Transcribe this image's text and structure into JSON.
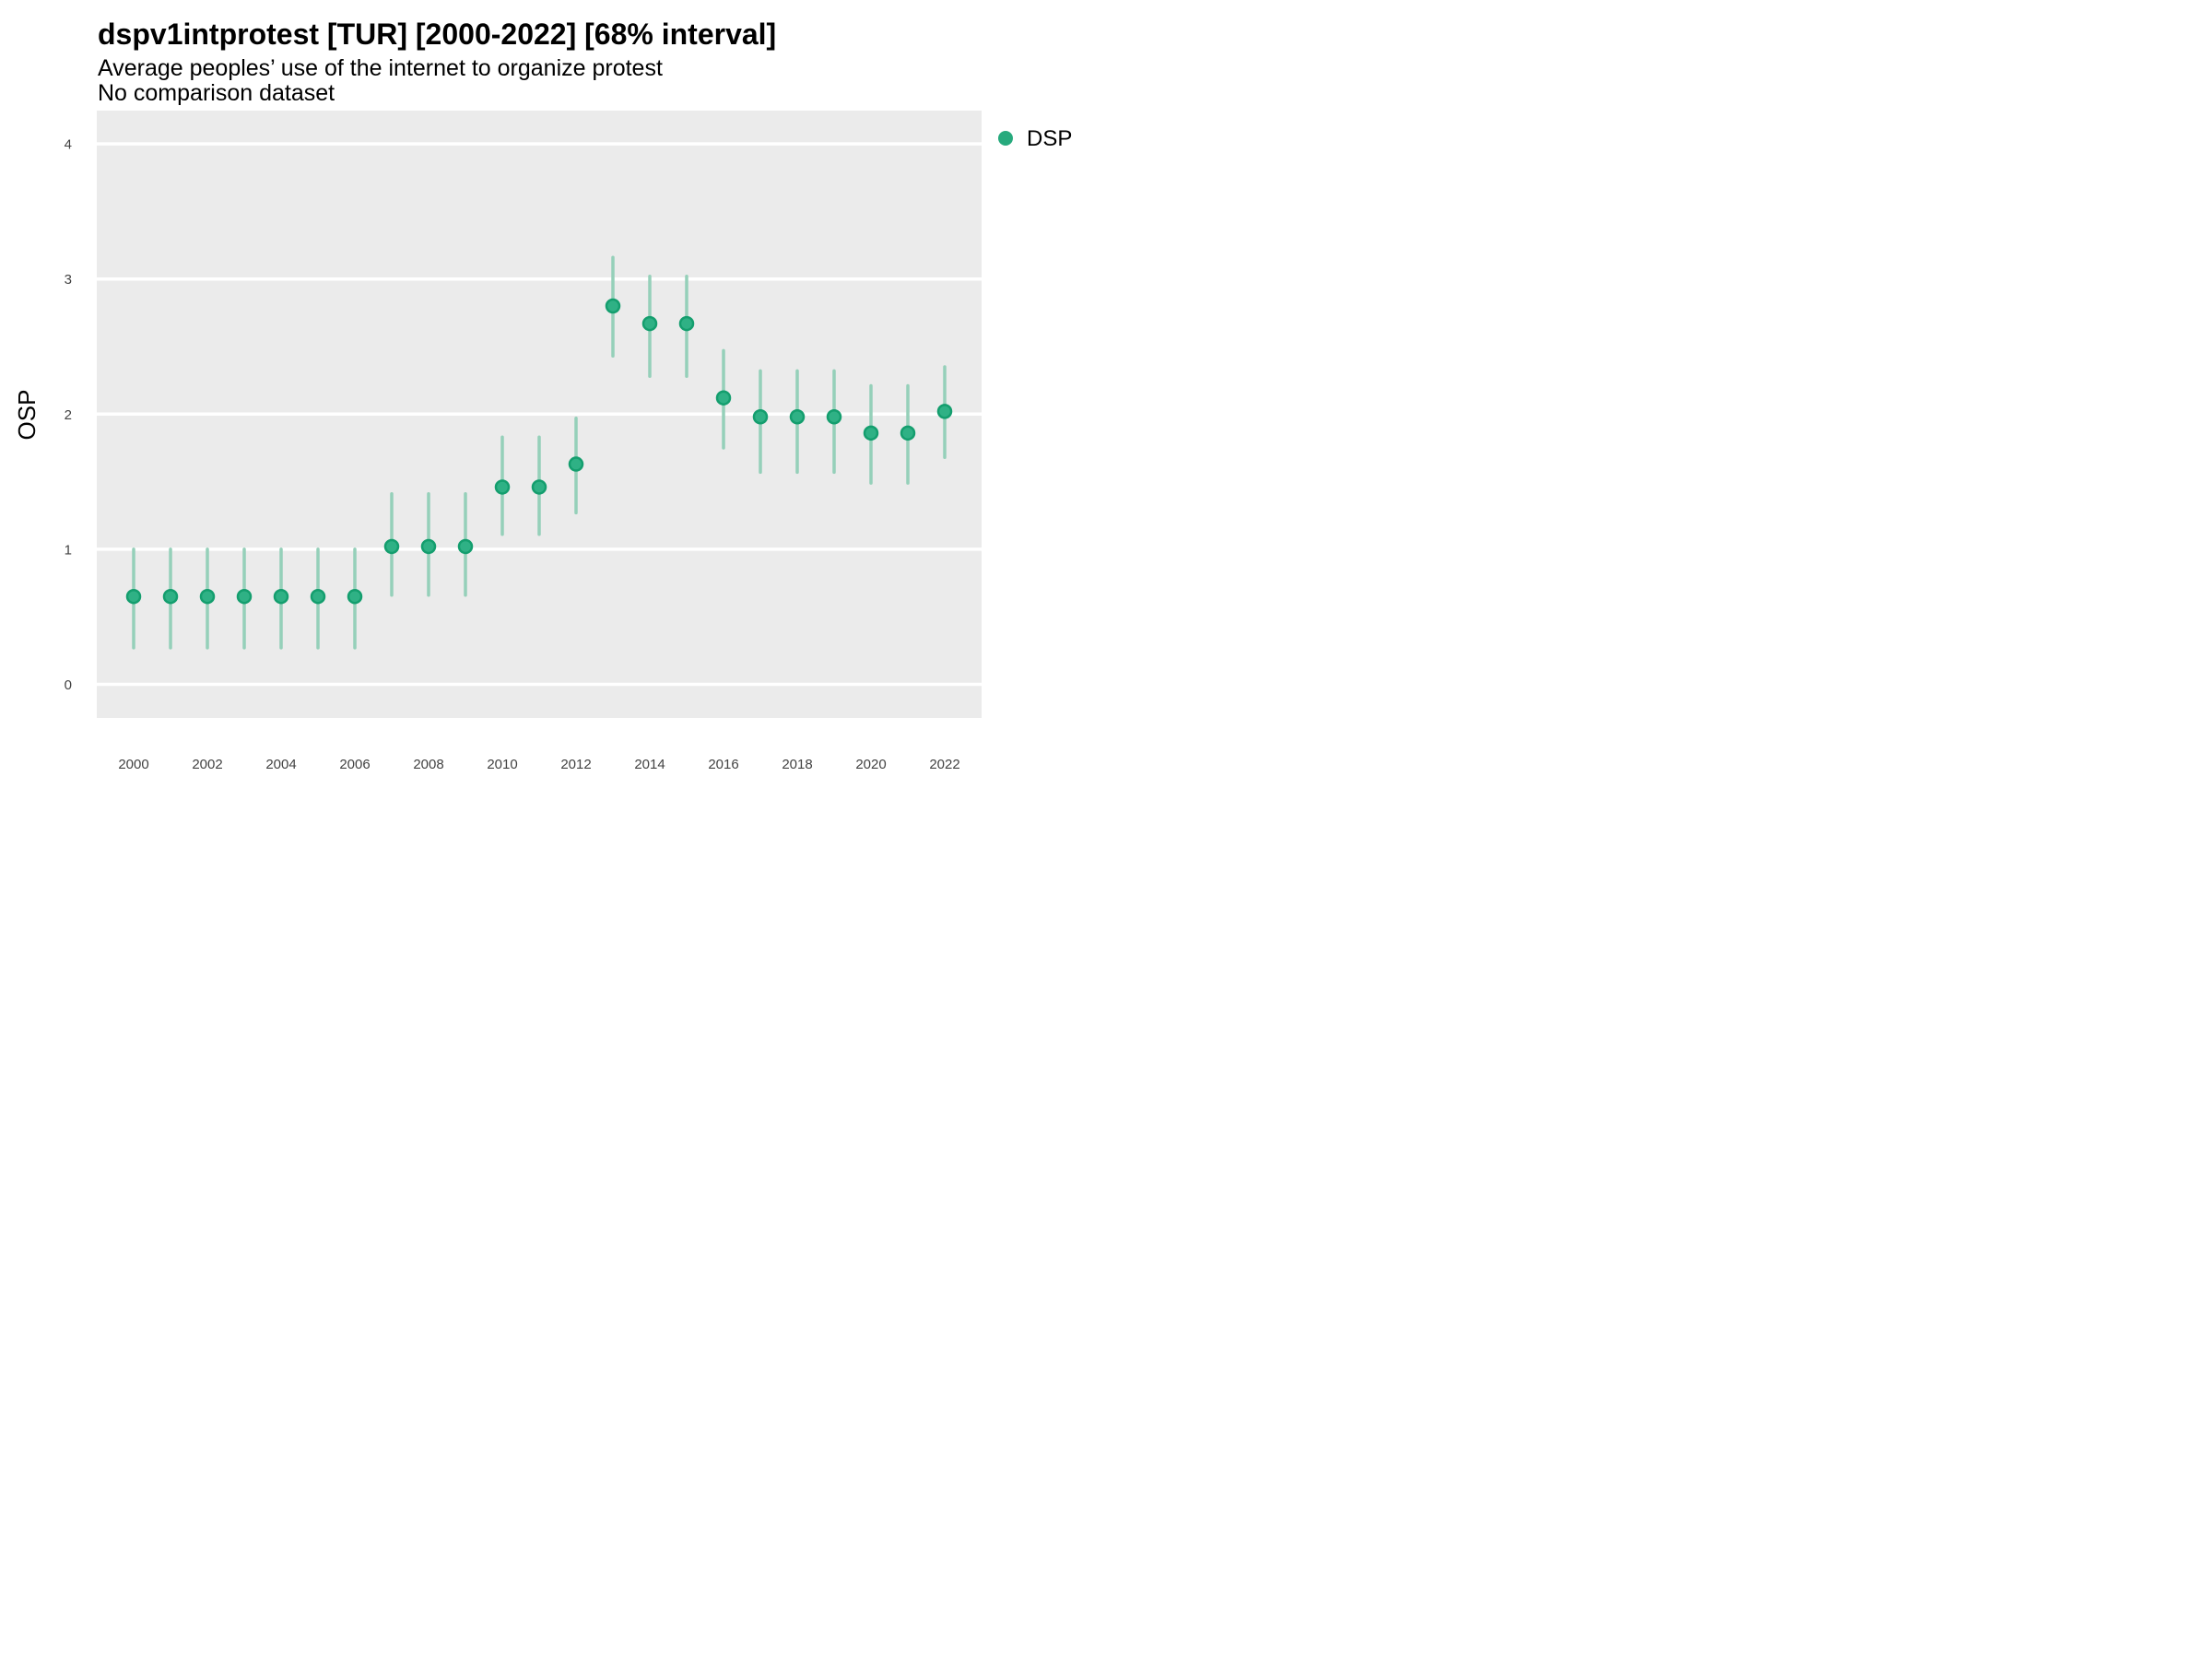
{
  "header": {
    "title": "dspv1intprotest [TUR] [2000-2022] [68% interval]",
    "subtitle": "Average peoples’ use of the internet to organize protest",
    "comparison_note": "No comparison dataset"
  },
  "legend": {
    "label": "DSP"
  },
  "colors": {
    "panel_bg": "#ebebeb",
    "grid": "#ffffff",
    "interval_bar": "#95d0b9",
    "point_fill": "#2fb185",
    "point_stroke": "#149e6e",
    "legend_dot": "#27aa7d",
    "title_text": "#000000",
    "tick_label": "#424242"
  },
  "chart_data": {
    "type": "scatter",
    "title": "dspv1intprotest [TUR] [2000-2022] [68% interval]",
    "subtitle": "Average peoples’ use of the internet to organize protest",
    "note": "No comparison dataset",
    "xlabel": "",
    "ylabel": "OSP",
    "interval_level": "68%",
    "ylim": [
      -0.25,
      4.25
    ],
    "xlim": [
      1999,
      2023
    ],
    "y_ticks": [
      0,
      1,
      2,
      3,
      4
    ],
    "x_ticks": [
      2000,
      2002,
      2004,
      2006,
      2008,
      2010,
      2012,
      2014,
      2016,
      2018,
      2020,
      2022
    ],
    "grid": "horizontal-major-only",
    "legend_position": "top-right",
    "series": [
      {
        "name": "DSP",
        "points": [
          {
            "year": 2000,
            "value": 0.65,
            "lower": 0.27,
            "upper": 1.0
          },
          {
            "year": 2001,
            "value": 0.65,
            "lower": 0.27,
            "upper": 1.0
          },
          {
            "year": 2002,
            "value": 0.65,
            "lower": 0.27,
            "upper": 1.0
          },
          {
            "year": 2003,
            "value": 0.65,
            "lower": 0.27,
            "upper": 1.0
          },
          {
            "year": 2004,
            "value": 0.65,
            "lower": 0.27,
            "upper": 1.0
          },
          {
            "year": 2005,
            "value": 0.65,
            "lower": 0.27,
            "upper": 1.0
          },
          {
            "year": 2006,
            "value": 0.65,
            "lower": 0.27,
            "upper": 1.0
          },
          {
            "year": 2007,
            "value": 1.02,
            "lower": 0.66,
            "upper": 1.41
          },
          {
            "year": 2008,
            "value": 1.02,
            "lower": 0.66,
            "upper": 1.41
          },
          {
            "year": 2009,
            "value": 1.02,
            "lower": 0.66,
            "upper": 1.41
          },
          {
            "year": 2010,
            "value": 1.46,
            "lower": 1.11,
            "upper": 1.83
          },
          {
            "year": 2011,
            "value": 1.46,
            "lower": 1.11,
            "upper": 1.83
          },
          {
            "year": 2012,
            "value": 1.63,
            "lower": 1.27,
            "upper": 1.97
          },
          {
            "year": 2013,
            "value": 2.8,
            "lower": 2.43,
            "upper": 3.16
          },
          {
            "year": 2014,
            "value": 2.67,
            "lower": 2.28,
            "upper": 3.02
          },
          {
            "year": 2015,
            "value": 2.67,
            "lower": 2.28,
            "upper": 3.02
          },
          {
            "year": 2016,
            "value": 2.12,
            "lower": 1.75,
            "upper": 2.47
          },
          {
            "year": 2017,
            "value": 1.98,
            "lower": 1.57,
            "upper": 2.32
          },
          {
            "year": 2018,
            "value": 1.98,
            "lower": 1.57,
            "upper": 2.32
          },
          {
            "year": 2019,
            "value": 1.98,
            "lower": 1.57,
            "upper": 2.32
          },
          {
            "year": 2020,
            "value": 1.86,
            "lower": 1.49,
            "upper": 2.21
          },
          {
            "year": 2021,
            "value": 1.86,
            "lower": 1.49,
            "upper": 2.21
          },
          {
            "year": 2022,
            "value": 2.02,
            "lower": 1.68,
            "upper": 2.35
          }
        ]
      }
    ]
  }
}
